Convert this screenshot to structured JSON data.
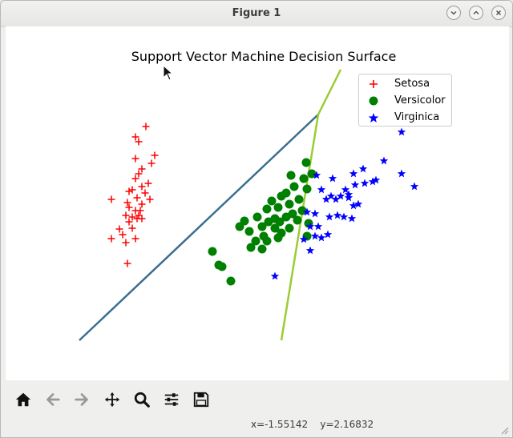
{
  "window": {
    "title": "Figure 1",
    "buttons": [
      "minimize-icon",
      "maximize-icon",
      "close-icon"
    ]
  },
  "toolbar": {
    "items": [
      {
        "name": "home-button",
        "icon": "home-icon"
      },
      {
        "name": "back-button",
        "icon": "arrow-left-icon"
      },
      {
        "name": "forward-button",
        "icon": "arrow-right-icon"
      },
      {
        "name": "pan-button",
        "icon": "move-icon"
      },
      {
        "name": "zoom-button",
        "icon": "magnifier-icon"
      },
      {
        "name": "configure-subplots-button",
        "icon": "sliders-icon"
      },
      {
        "name": "save-button",
        "icon": "floppy-disk-icon"
      }
    ],
    "coords": "x=-1.55142    y=2.16832"
  },
  "chart_data": {
    "type": "scatter",
    "title": "Support Vector Machine Decision Surface",
    "xlabel": "",
    "ylabel": "",
    "axes_visible": false,
    "grid": false,
    "legend_position": "top-right",
    "series": [
      {
        "name": "Setosa",
        "marker": "plus",
        "color": "#ff0000",
        "points": [
          [
            181,
            157
          ],
          [
            168,
            170
          ],
          [
            172,
            176
          ],
          [
            192,
            193
          ],
          [
            168,
            197
          ],
          [
            188,
            203
          ],
          [
            176,
            210
          ],
          [
            172,
            216
          ],
          [
            168,
            222
          ],
          [
            184,
            228
          ],
          [
            176,
            232
          ],
          [
            164,
            236
          ],
          [
            180,
            240
          ],
          [
            160,
            238
          ],
          [
            138,
            248
          ],
          [
            186,
            248
          ],
          [
            170,
            246
          ],
          [
            158,
            252
          ],
          [
            176,
            254
          ],
          [
            168,
            262
          ],
          [
            156,
            268
          ],
          [
            164,
            270
          ],
          [
            172,
            268
          ],
          [
            176,
            272
          ],
          [
            160,
            276
          ],
          [
            148,
            285
          ],
          [
            152,
            292
          ],
          [
            138,
            297
          ],
          [
            168,
            297
          ],
          [
            156,
            302
          ],
          [
            158,
            328
          ],
          [
            170,
            272
          ],
          [
            160,
            258
          ],
          [
            164,
            284
          ],
          [
            174,
            262
          ]
        ]
      },
      {
        "name": "Versicolor",
        "marker": "circle",
        "color": "#008000",
        "points": [
          [
            381,
            202
          ],
          [
            362,
            218
          ],
          [
            378,
            222
          ],
          [
            388,
            216
          ],
          [
            382,
            235
          ],
          [
            366,
            232
          ],
          [
            356,
            240
          ],
          [
            350,
            244
          ],
          [
            338,
            250
          ],
          [
            372,
            248
          ],
          [
            360,
            254
          ],
          [
            346,
            258
          ],
          [
            332,
            260
          ],
          [
            320,
            270
          ],
          [
            342,
            272
          ],
          [
            376,
            262
          ],
          [
            364,
            266
          ],
          [
            356,
            270
          ],
          [
            370,
            274
          ],
          [
            348,
            276
          ],
          [
            304,
            275
          ],
          [
            298,
            282
          ],
          [
            334,
            276
          ],
          [
            326,
            282
          ],
          [
            342,
            284
          ],
          [
            360,
            284
          ],
          [
            384,
            278
          ],
          [
            350,
            290
          ],
          [
            328,
            294
          ],
          [
            318,
            300
          ],
          [
            312,
            308
          ],
          [
            326,
            310
          ],
          [
            382,
            294
          ],
          [
            264,
            313
          ],
          [
            272,
            330
          ],
          [
            276,
            332
          ],
          [
            287,
            350
          ],
          [
            332,
            300
          ],
          [
            346,
            296
          ],
          [
            310,
            288
          ]
        ]
      },
      {
        "name": "Virginica",
        "marker": "star",
        "color": "#0000ff",
        "points": [
          [
            500,
            164
          ],
          [
            478,
            200
          ],
          [
            500,
            216
          ],
          [
            516,
            232
          ],
          [
            452,
            210
          ],
          [
            440,
            216
          ],
          [
            468,
            224
          ],
          [
            464,
            226
          ],
          [
            454,
            228
          ],
          [
            442,
            230
          ],
          [
            430,
            236
          ],
          [
            414,
            222
          ],
          [
            400,
            236
          ],
          [
            434,
            242
          ],
          [
            412,
            244
          ],
          [
            418,
            248
          ],
          [
            406,
            248
          ],
          [
            394,
            218
          ],
          [
            382,
            264
          ],
          [
            392,
            266
          ],
          [
            386,
            282
          ],
          [
            396,
            282
          ],
          [
            410,
            270
          ],
          [
            420,
            268
          ],
          [
            428,
            270
          ],
          [
            438,
            272
          ],
          [
            446,
            254
          ],
          [
            440,
            256
          ],
          [
            434,
            246
          ],
          [
            424,
            244
          ],
          [
            392,
            294
          ],
          [
            400,
            296
          ],
          [
            408,
            292
          ],
          [
            378,
            298
          ],
          [
            386,
            312
          ],
          [
            342,
            344
          ]
        ]
      }
    ],
    "decision_lines": [
      {
        "name": "boundary-1",
        "color": "#3a6f8f",
        "points": [
          [
            98,
            424
          ],
          [
            396,
            142
          ]
        ]
      },
      {
        "name": "boundary-2",
        "color": "#9acd32",
        "points": [
          [
            350,
            424
          ],
          [
            396,
            142
          ],
          [
            424,
            86
          ]
        ]
      }
    ]
  }
}
